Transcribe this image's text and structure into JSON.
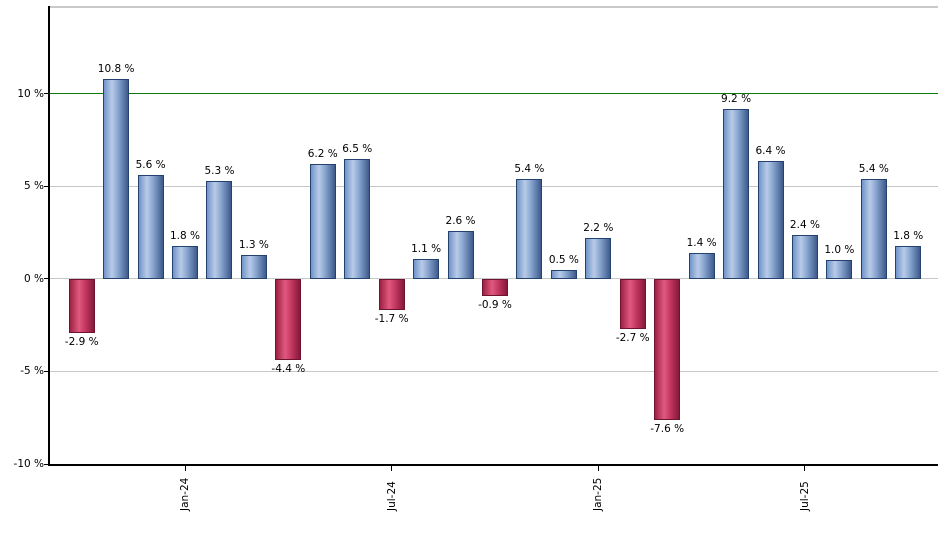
{
  "chart_data": {
    "type": "bar",
    "title": "",
    "unit": "%",
    "values": [
      -2.9,
      10.8,
      5.6,
      1.8,
      5.3,
      1.3,
      -4.4,
      6.2,
      6.5,
      -1.7,
      1.1,
      2.6,
      -0.9,
      5.4,
      0.5,
      2.2,
      -2.7,
      -7.6,
      1.4,
      9.2,
      6.4,
      2.4,
      1.0,
      5.4,
      1.8
    ],
    "bar_labels": [
      "-2.9 %",
      "10.8 %",
      "5.6 %",
      "1.8 %",
      "5.3 %",
      "1.3 %",
      "-4.4 %",
      "6.2 %",
      "6.5 %",
      "-1.7 %",
      "1.1 %",
      "2.6 %",
      "-0.9 %",
      "5.4 %",
      "0.5 %",
      "2.2 %",
      "-2.7 %",
      "-7.6 %",
      "1.4 %",
      "9.2 %",
      "6.4 %",
      "2.4 %",
      "1.0 %",
      "5.4 %",
      "1.8 %"
    ],
    "x_ticks": [
      {
        "label": "Jan-24",
        "index": 3
      },
      {
        "label": "Jul-24",
        "index": 9
      },
      {
        "label": "Jan-25",
        "index": 15
      },
      {
        "label": "Jul-25",
        "index": 21
      }
    ],
    "y_ticks": [
      10,
      5,
      0,
      -5,
      -10
    ],
    "y_tick_labels": [
      "10 %",
      "5 %",
      "0 %",
      "-5 %",
      "-10 %"
    ],
    "ylim": [
      -10,
      14.7
    ],
    "gridlines_at": [
      5,
      0,
      -5
    ],
    "reference_line": {
      "value": 10,
      "color": "#0a7a0a"
    },
    "legend": "none",
    "colors": {
      "positive_bar": "#6e93c8",
      "negative_bar": "#c23a60",
      "gridline": "#c8c8c8",
      "axis": "#000000",
      "plot_top_border": "#c9c9c9",
      "label_text": "#000000"
    }
  }
}
